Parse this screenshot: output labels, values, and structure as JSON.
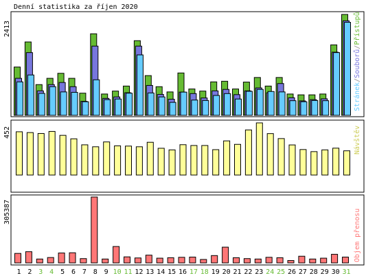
{
  "title": "Denní statistika za říjen 2020",
  "colors": {
    "background": "#ffffff",
    "panel_border": "#000000",
    "hits": "#66bb33",
    "files": "#7777dd",
    "pages": "#66ccff",
    "visits": "#ffff99",
    "volume": "#ff7777",
    "weekday_label": "#000000",
    "weekend_label": "#66bb33"
  },
  "chart_data": [
    {
      "type": "bar",
      "panel": "top",
      "max_label": "2413",
      "ylim": [
        0,
        2413
      ],
      "legend": {
        "pages": "Stránek",
        "sep1": "/",
        "files": "Souborů",
        "sep2": "/",
        "hits": "Přístupů"
      },
      "categories": [
        "1",
        "2",
        "3",
        "4",
        "5",
        "6",
        "7",
        "8",
        "9",
        "10",
        "11",
        "12",
        "13",
        "14",
        "15",
        "16",
        "17",
        "18",
        "19",
        "20",
        "21",
        "22",
        "23",
        "24",
        "25",
        "26",
        "27",
        "28",
        "29",
        "30",
        "31"
      ],
      "series": [
        {
          "name": "Přístupů",
          "values": [
            1155,
            1755,
            735,
            885,
            1005,
            885,
            530,
            1950,
            510,
            580,
            700,
            1785,
            950,
            685,
            560,
            1013,
            630,
            580,
            800,
            815,
            630,
            795,
            905,
            700,
            905,
            510,
            490,
            490,
            510,
            1685,
            2413
          ]
        },
        {
          "name": "Souborů",
          "values": [
            885,
            1500,
            585,
            735,
            785,
            685,
            335,
            1655,
            405,
            440,
            540,
            1655,
            715,
            500,
            385,
            555,
            520,
            415,
            585,
            620,
            495,
            585,
            655,
            540,
            760,
            420,
            345,
            375,
            395,
            1510,
            2260
          ]
        },
        {
          "name": "Stránek",
          "values": [
            800,
            965,
            525,
            685,
            560,
            550,
            325,
            850,
            375,
            390,
            530,
            1445,
            535,
            440,
            310,
            555,
            365,
            355,
            475,
            520,
            390,
            575,
            620,
            570,
            560,
            350,
            325,
            355,
            350,
            1500,
            2225
          ]
        }
      ]
    },
    {
      "type": "bar",
      "panel": "middle",
      "max_label": "452",
      "ylim": [
        0,
        452
      ],
      "legend_label": "Návštěv",
      "categories": [
        "1",
        "2",
        "3",
        "4",
        "5",
        "6",
        "7",
        "8",
        "9",
        "10",
        "11",
        "12",
        "13",
        "14",
        "15",
        "16",
        "17",
        "18",
        "19",
        "20",
        "21",
        "22",
        "23",
        "24",
        "25",
        "26",
        "27",
        "28",
        "29",
        "30",
        "31"
      ],
      "series": [
        {
          "name": "Návštěv",
          "values": [
            375,
            368,
            360,
            378,
            344,
            314,
            262,
            245,
            287,
            253,
            251,
            245,
            284,
            232,
            218,
            263,
            256,
            256,
            220,
            296,
            266,
            391,
            452,
            359,
            316,
            261,
            221,
            203,
            218,
            233,
            210
          ]
        }
      ]
    },
    {
      "type": "bar",
      "panel": "bottom",
      "max_label": "305387",
      "ylim": [
        0,
        305387
      ],
      "legend_label": "Objem přenosu",
      "categories": [
        "1",
        "2",
        "3",
        "4",
        "5",
        "6",
        "7",
        "8",
        "9",
        "10",
        "11",
        "12",
        "13",
        "14",
        "15",
        "16",
        "17",
        "18",
        "19",
        "20",
        "21",
        "22",
        "23",
        "24",
        "25",
        "26",
        "27",
        "28",
        "29",
        "30",
        "31"
      ],
      "series": [
        {
          "name": "Objem přenosu",
          "values": [
            44000,
            52000,
            18000,
            25000,
            46000,
            47000,
            20000,
            305387,
            18000,
            76000,
            28000,
            23000,
            36000,
            22000,
            24000,
            26000,
            27000,
            16000,
            34000,
            73000,
            24000,
            20000,
            18000,
            26000,
            24000,
            11000,
            31000,
            18000,
            22000,
            40000,
            27000
          ]
        }
      ]
    }
  ],
  "x_axis": {
    "labels": [
      "1",
      "2",
      "3",
      "4",
      "5",
      "6",
      "7",
      "8",
      "9",
      "10",
      "11",
      "12",
      "13",
      "14",
      "15",
      "16",
      "17",
      "18",
      "19",
      "20",
      "21",
      "22",
      "23",
      "24",
      "25",
      "26",
      "27",
      "28",
      "29",
      "30",
      "31"
    ],
    "weekend": [
      false,
      false,
      true,
      true,
      false,
      false,
      false,
      false,
      false,
      true,
      true,
      false,
      false,
      false,
      false,
      false,
      true,
      true,
      false,
      false,
      false,
      false,
      false,
      true,
      true,
      false,
      false,
      false,
      false,
      false,
      true
    ]
  }
}
